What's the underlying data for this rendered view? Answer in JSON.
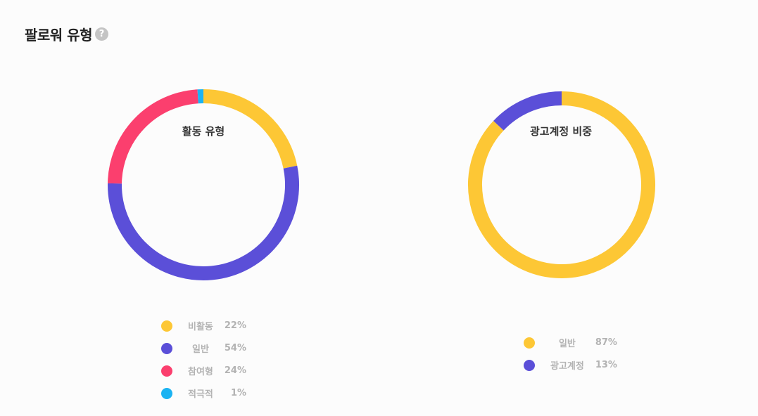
{
  "section": {
    "title": "팔로워 유형",
    "help_icon": "question-mark-icon",
    "help_glyph": "?"
  },
  "chart_data": [
    {
      "type": "pie",
      "donut": true,
      "title": "활동 유형",
      "legend_position": "bottom",
      "categories": [
        "비활동",
        "일반",
        "참여형",
        "적극적"
      ],
      "values": [
        22,
        54,
        24,
        1
      ],
      "value_labels": [
        "22%",
        "54%",
        "24%",
        "1%"
      ],
      "colors": [
        "#fdc735",
        "#5b4fd8",
        "#fb3f6e",
        "#1bb3f2"
      ]
    },
    {
      "type": "pie",
      "donut": true,
      "title": "광고계정 비중",
      "legend_position": "bottom",
      "categories": [
        "일반",
        "광고계정"
      ],
      "values": [
        87,
        13
      ],
      "value_labels": [
        "87%",
        "13%"
      ],
      "colors": [
        "#fdc735",
        "#5b4fd8"
      ]
    }
  ]
}
